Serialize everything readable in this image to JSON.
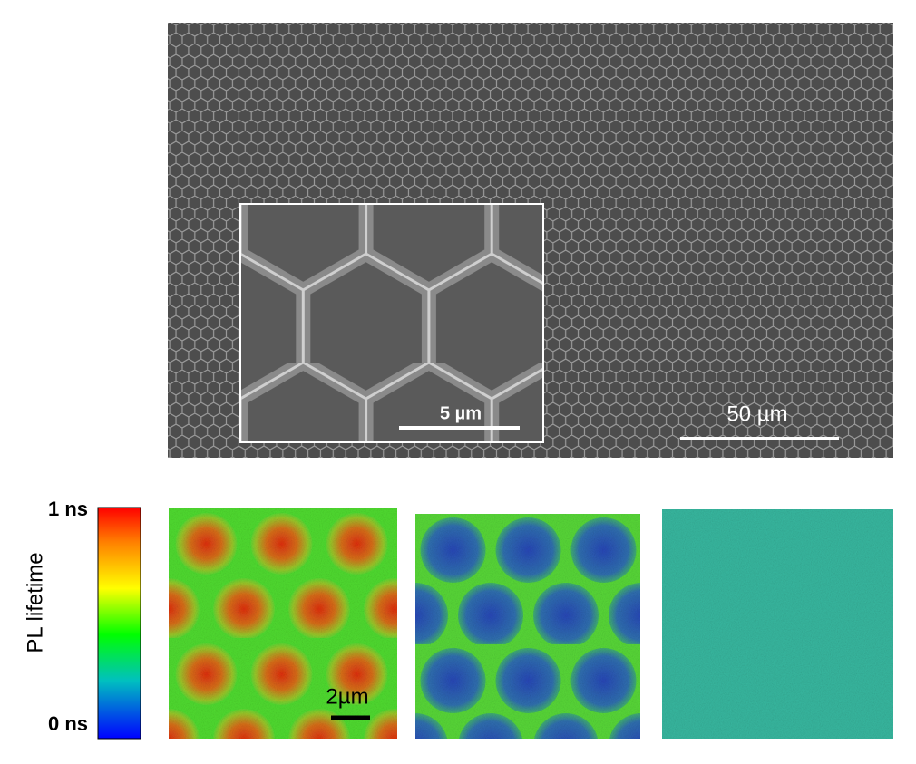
{
  "sem": {
    "scale_bar": "50 µm",
    "inset_scale_bar": "5 µm"
  },
  "colorbar": {
    "max_label": "1 ns",
    "min_label": "0 ns",
    "title": "PL lifetime"
  },
  "maps": {
    "scale_bar": "2µm"
  }
}
